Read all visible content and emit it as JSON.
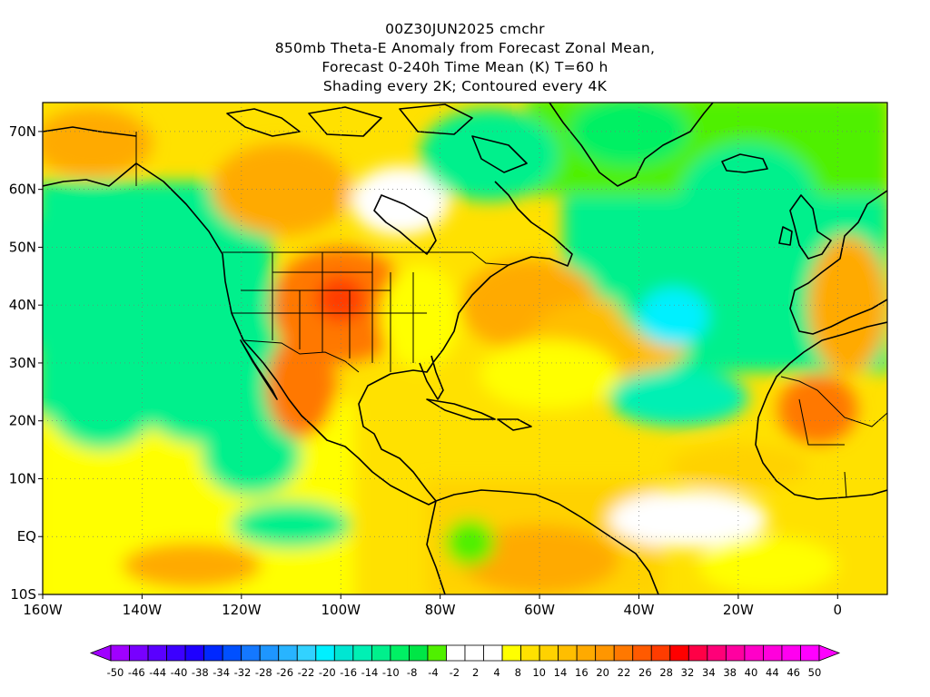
{
  "title_lines": [
    "00Z30JUN2025 cmchr",
    "850mb Theta-E Anomaly from Forecast Zonal Mean,",
    "Forecast 0-240h Time Mean (K) T=60 h",
    "Shading every 2K; Contoured every 4K"
  ],
  "map": {
    "lon_range": [
      -160,
      10
    ],
    "lat_range": [
      -10,
      75
    ],
    "lat_ticks": [
      {
        "value": 70,
        "label": "70N"
      },
      {
        "value": 60,
        "label": "60N"
      },
      {
        "value": 50,
        "label": "50N"
      },
      {
        "value": 40,
        "label": "40N"
      },
      {
        "value": 30,
        "label": "30N"
      },
      {
        "value": 20,
        "label": "20N"
      },
      {
        "value": 10,
        "label": "10N"
      },
      {
        "value": 0,
        "label": "EQ"
      },
      {
        "value": -10,
        "label": "10S"
      }
    ],
    "lon_ticks": [
      {
        "value": -160,
        "label": "160W"
      },
      {
        "value": -140,
        "label": "140W"
      },
      {
        "value": -120,
        "label": "120W"
      },
      {
        "value": -100,
        "label": "100W"
      },
      {
        "value": -80,
        "label": "80W"
      },
      {
        "value": -60,
        "label": "60W"
      },
      {
        "value": -40,
        "label": "40W"
      },
      {
        "value": -20,
        "label": "20W"
      },
      {
        "value": 0,
        "label": "0"
      }
    ]
  },
  "colorbar": {
    "labels": [
      "-50",
      "-46",
      "-44",
      "-40",
      "-38",
      "-34",
      "-32",
      "-28",
      "-26",
      "-22",
      "-20",
      "-16",
      "-14",
      "-10",
      "-8",
      "-4",
      "-2",
      "2",
      "4",
      "8",
      "10",
      "14",
      "16",
      "20",
      "22",
      "26",
      "28",
      "32",
      "34",
      "38",
      "40",
      "44",
      "46",
      "50"
    ],
    "colors": [
      "#a000ff",
      "#7800ff",
      "#5a00ff",
      "#3c00ff",
      "#1e00ff",
      "#0028ff",
      "#0050ff",
      "#1478ff",
      "#1e96ff",
      "#28b4ff",
      "#32d2ff",
      "#00f0ff",
      "#00e6d2",
      "#00f0b4",
      "#00f08c",
      "#00f064",
      "#00e646",
      "#50f000",
      "#ffffff",
      "#ffffff",
      "#ffffff",
      "#ffff00",
      "#ffe100",
      "#ffd200",
      "#ffbe00",
      "#ffaa00",
      "#ff9600",
      "#ff7800",
      "#ff5a00",
      "#ff3c00",
      "#ff0000",
      "#ff0046",
      "#ff0078",
      "#ff00a0",
      "#ff00c8",
      "#ff00dc",
      "#ff00f0",
      "#ff00ff"
    ]
  },
  "field_patches": [
    {
      "lon": -152,
      "lat": 40,
      "rx": 12,
      "ry": 10,
      "color": "#00f0ff"
    },
    {
      "lon": -146,
      "lat": 44,
      "rx": 22,
      "ry": 16,
      "color": "#00f08c"
    },
    {
      "lon": -128,
      "lat": 30,
      "rx": 16,
      "ry": 14,
      "color": "#00f08c"
    },
    {
      "lon": -148,
      "lat": 25,
      "rx": 12,
      "ry": 10,
      "color": "#00f08c"
    },
    {
      "lon": -118,
      "lat": 14,
      "rx": 10,
      "ry": 7,
      "color": "#00f08c"
    },
    {
      "lon": -100,
      "lat": 40,
      "rx": 14,
      "ry": 10,
      "color": "#ff7800"
    },
    {
      "lon": -100,
      "lat": 41,
      "rx": 5,
      "ry": 4,
      "color": "#ff3c00"
    },
    {
      "lon": -108,
      "lat": 26,
      "rx": 7,
      "ry": 9,
      "color": "#ff7800"
    },
    {
      "lon": -112,
      "lat": 60,
      "rx": 14,
      "ry": 8,
      "color": "#ffaa00"
    },
    {
      "lon": -150,
      "lat": 68,
      "rx": 12,
      "ry": 6,
      "color": "#ffaa00"
    },
    {
      "lon": -84,
      "lat": 38,
      "rx": 8,
      "ry": 9,
      "color": "#ffff00"
    },
    {
      "lon": -88,
      "lat": 58,
      "rx": 10,
      "ry": 6,
      "color": "#ffffff"
    },
    {
      "lon": -70,
      "lat": 66,
      "rx": 14,
      "ry": 8,
      "color": "#00f08c"
    },
    {
      "lon": -42,
      "lat": 70,
      "rx": 12,
      "ry": 6,
      "color": "#00f064"
    },
    {
      "lon": -62,
      "lat": 40,
      "rx": 14,
      "ry": 8,
      "color": "#ffaa00"
    },
    {
      "lon": -46,
      "lat": 34,
      "rx": 16,
      "ry": 7,
      "color": "#ffbe00"
    },
    {
      "lon": -58,
      "lat": 28,
      "rx": 14,
      "ry": 6,
      "color": "#ffff00"
    },
    {
      "lon": -32,
      "lat": 45,
      "rx": 14,
      "ry": 12,
      "color": "#00f08c"
    },
    {
      "lon": -33,
      "lat": 38,
      "rx": 7,
      "ry": 5,
      "color": "#00f0ff"
    },
    {
      "lon": -18,
      "lat": 58,
      "rx": 14,
      "ry": 10,
      "color": "#00f08c"
    },
    {
      "lon": -32,
      "lat": 24,
      "rx": 14,
      "ry": 5,
      "color": "#00f0b4"
    },
    {
      "lon": 2,
      "lat": 40,
      "rx": 8,
      "ry": 12,
      "color": "#ffaa00"
    },
    {
      "lon": -4,
      "lat": 22,
      "rx": 8,
      "ry": 6,
      "color": "#ff7800"
    },
    {
      "lon": -20,
      "lat": 12,
      "rx": 14,
      "ry": 4,
      "color": "#ffd200"
    },
    {
      "lon": -30,
      "lat": 3,
      "rx": 16,
      "ry": 5,
      "color": "#ffffff"
    },
    {
      "lon": -60,
      "lat": -4,
      "rx": 16,
      "ry": 6,
      "color": "#ffaa00"
    },
    {
      "lon": -74,
      "lat": -1,
      "rx": 5,
      "ry": 4,
      "color": "#50f000"
    },
    {
      "lon": -140,
      "lat": 3,
      "rx": 18,
      "ry": 5,
      "color": "#ffff00"
    },
    {
      "lon": -130,
      "lat": -5,
      "rx": 14,
      "ry": 4,
      "color": "#ffaa00"
    },
    {
      "lon": -110,
      "lat": 2,
      "rx": 12,
      "ry": 4,
      "color": "#00f08c"
    },
    {
      "lon": -14,
      "lat": -5,
      "rx": 14,
      "ry": 5,
      "color": "#ffff00"
    }
  ]
}
